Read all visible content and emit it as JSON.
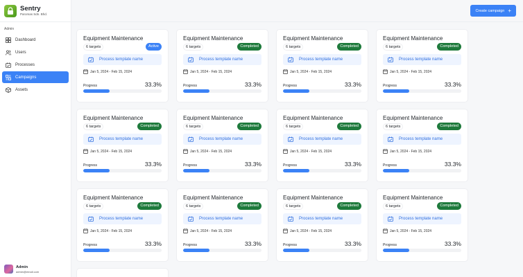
{
  "brand": {
    "name": "Sentry",
    "subtitle": "Paromas Sdn. Bhd."
  },
  "sidebar": {
    "section": "Admin",
    "items": [
      {
        "label": "Dashboard",
        "icon": "dashboard-icon",
        "active": false
      },
      {
        "label": "Users",
        "icon": "users-icon",
        "active": false
      },
      {
        "label": "Processes",
        "icon": "processes-icon",
        "active": false
      },
      {
        "label": "Campaigns",
        "icon": "campaigns-icon",
        "active": true
      },
      {
        "label": "Assets",
        "icon": "assets-icon",
        "active": false
      }
    ]
  },
  "user": {
    "name": "Admin",
    "email": "admin@email.com"
  },
  "toolbar": {
    "create_label": "Create campaign",
    "create_icon": "+"
  },
  "colors": {
    "accent": "#3b82f6",
    "completed": "#1e7a3c",
    "template_bg": "#eef4ff"
  },
  "campaigns": [
    {
      "title": "Equipment Maintenance",
      "targets": "6 targets",
      "status": "Active",
      "template": "Process template name",
      "dates": "Jan 5, 2024 - Feb 15, 2024",
      "progress_label": "Progress",
      "progress": "33.3%"
    },
    {
      "title": "Equipment Maintenance",
      "targets": "6 targets",
      "status": "Completed",
      "template": "Process template name",
      "dates": "Jan 5, 2024 - Feb 15, 2024",
      "progress_label": "Progress",
      "progress": "33.3%"
    },
    {
      "title": "Equipment Maintenance",
      "targets": "6 targets",
      "status": "Completed",
      "template": "Process template name",
      "dates": "Jan 5, 2024 - Feb 15, 2024",
      "progress_label": "Progress",
      "progress": "33.3%"
    },
    {
      "title": "Equipment Maintenance",
      "targets": "6 targets",
      "status": "Completed",
      "template": "Process template name",
      "dates": "Jan 5, 2024 - Feb 15, 2024",
      "progress_label": "Progress",
      "progress": "33.3%"
    },
    {
      "title": "Equipment Maintenance",
      "targets": "6 targets",
      "status": "Completed",
      "template": "Process template name",
      "dates": "Jan 5, 2024 - Feb 15, 2024",
      "progress_label": "Progress",
      "progress": "33.3%"
    },
    {
      "title": "Equipment Maintenance",
      "targets": "6 targets",
      "status": "Completed",
      "template": "Process template name",
      "dates": "Jan 5, 2024 - Feb 15, 2024",
      "progress_label": "Progress",
      "progress": "33.3%"
    },
    {
      "title": "Equipment Maintenance",
      "targets": "6 targets",
      "status": "Completed",
      "template": "Process template name",
      "dates": "Jan 5, 2024 - Feb 15, 2024",
      "progress_label": "Progress",
      "progress": "33.3%"
    },
    {
      "title": "Equipment Maintenance",
      "targets": "6 targets",
      "status": "Completed",
      "template": "Process template name",
      "dates": "Jan 5, 2024 - Feb 15, 2024",
      "progress_label": "Progress",
      "progress": "33.3%"
    },
    {
      "title": "Equipment Maintenance",
      "targets": "6 targets",
      "status": "Completed",
      "template": "Process template name",
      "dates": "Jan 5, 2024 - Feb 15, 2024",
      "progress_label": "Progress",
      "progress": "33.3%"
    },
    {
      "title": "Equipment Maintenance",
      "targets": "6 targets",
      "status": "Completed",
      "template": "Process template name",
      "dates": "Jan 5, 2024 - Feb 15, 2024",
      "progress_label": "Progress",
      "progress": "33.3%"
    },
    {
      "title": "Equipment Maintenance",
      "targets": "6 targets",
      "status": "Completed",
      "template": "Process template name",
      "dates": "Jan 5, 2024 - Feb 15, 2024",
      "progress_label": "Progress",
      "progress": "33.3%"
    },
    {
      "title": "Equipment Maintenance",
      "targets": "6 targets",
      "status": "Completed",
      "template": "Process template name",
      "dates": "Jan 5, 2024 - Feb 15, 2024",
      "progress_label": "Progress",
      "progress": "33.3%"
    }
  ]
}
